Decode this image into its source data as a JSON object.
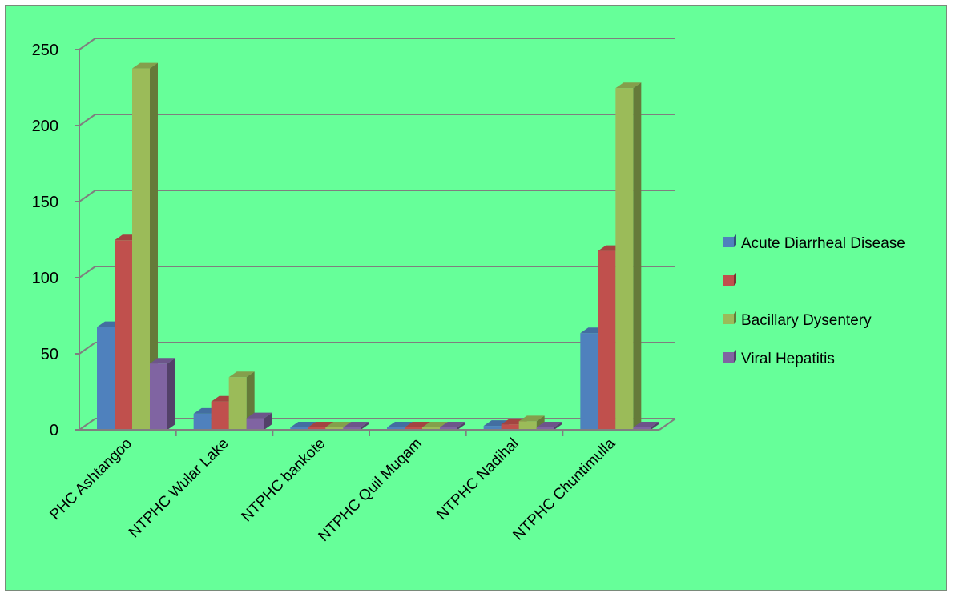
{
  "chart_data": {
    "type": "bar",
    "title": "",
    "xlabel": "",
    "ylabel": "",
    "ylim": [
      0,
      250
    ],
    "yticks": [
      0,
      50,
      100,
      150,
      200,
      250
    ],
    "grid": true,
    "legend_position": "right",
    "categories": [
      "PHC Ashtangoo",
      "NTPHC Wular Lake",
      "NTPHC bankote",
      "NTPHC Quil Muqam",
      "NTPHC Nadihal",
      "NTPHC Chuntimulla"
    ],
    "series": [
      {
        "name": "Acute Diarrheal Disease",
        "color": "#4f81bd",
        "values": [
          66,
          9,
          0,
          0,
          1,
          62
        ]
      },
      {
        "name": "",
        "color": "#c0504d",
        "values": [
          123,
          17,
          0,
          0,
          2,
          116
        ]
      },
      {
        "name": "Bacillary Dysentery",
        "color": "#9bbb59",
        "values": [
          236,
          33,
          0,
          0,
          4,
          223
        ]
      },
      {
        "name": "Viral Hepatitis",
        "color": "#8064a2",
        "values": [
          42,
          6,
          0,
          0,
          0,
          0
        ]
      }
    ],
    "background_color": "#66ff99",
    "gridline_color": "#7f7f7f"
  }
}
